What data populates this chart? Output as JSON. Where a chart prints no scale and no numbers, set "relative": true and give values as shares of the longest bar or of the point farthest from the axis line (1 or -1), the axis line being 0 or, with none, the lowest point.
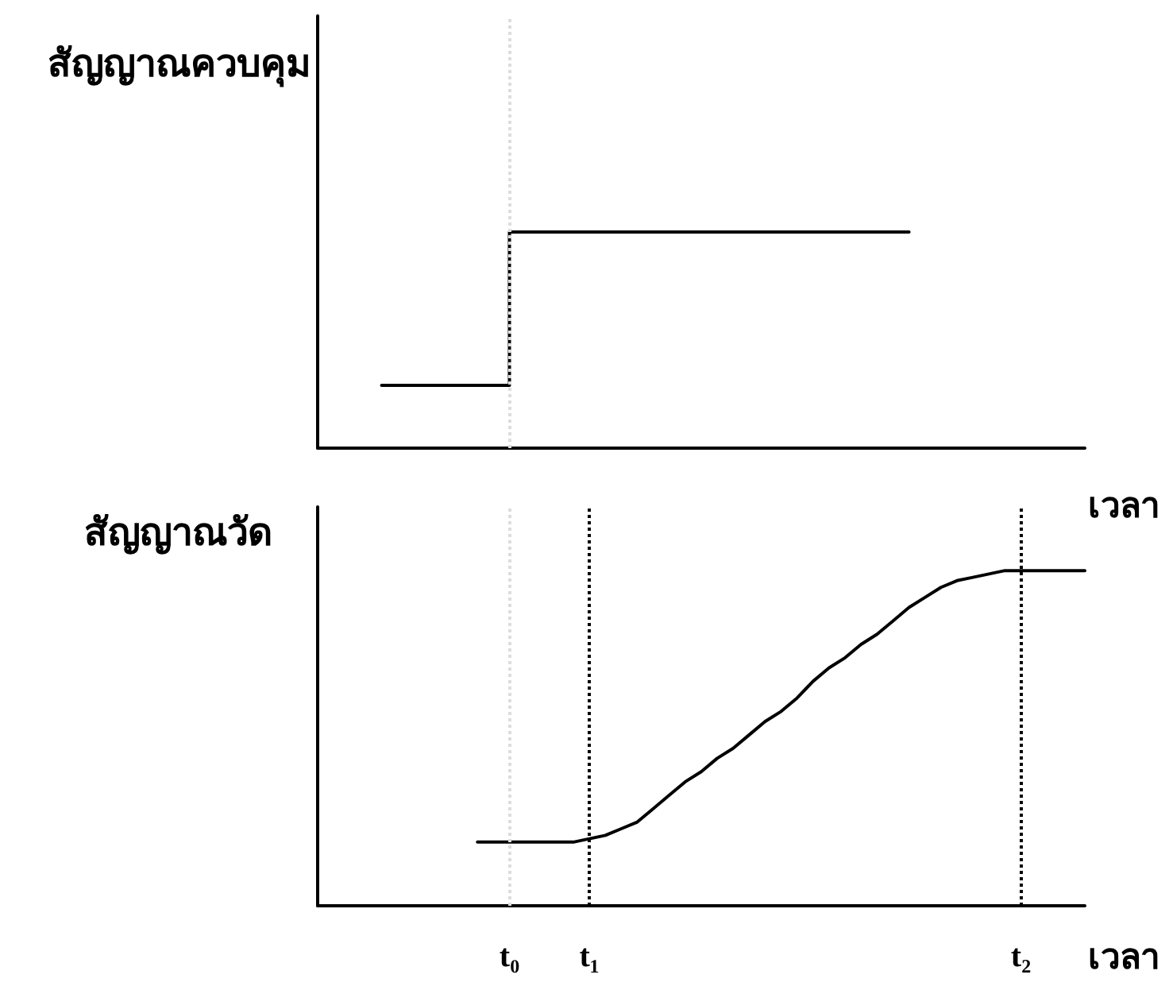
{
  "chart_data": [
    {
      "type": "step",
      "ylabel": "สัญญาณควบคุม",
      "xlabel": "เวลา",
      "relative": true,
      "tick_labels": false,
      "marker": "none",
      "line_style": "solid",
      "categories": [
        null,
        null,
        null,
        null,
        null,
        null,
        null,
        null,
        null,
        null,
        null,
        null,
        "t₀",
        null,
        null,
        null,
        null,
        "t₁",
        null,
        null,
        null,
        null,
        null,
        null,
        null,
        null,
        null,
        null,
        null,
        null,
        null,
        null,
        null,
        null,
        null,
        null,
        null,
        null,
        null,
        null,
        null,
        null,
        null,
        null,
        "t₂",
        null,
        null,
        null,
        null
      ],
      "series": [
        {
          "color": "#000000",
          "values": [
            null,
            null,
            null,
            null,
            0.29,
            0.29,
            0.29,
            0.29,
            0.29,
            0.29,
            0.29,
            0.29,
            0.29,
            1,
            1,
            1,
            1,
            1,
            1,
            1,
            1,
            1,
            1,
            1,
            1,
            1,
            1,
            1,
            1,
            1,
            1,
            1,
            1,
            1,
            1,
            1,
            1,
            1,
            null,
            null,
            null,
            null,
            null,
            null,
            null,
            null,
            null,
            null,
            null
          ]
        }
      ],
      "ref_lines": [
        {
          "axis": "x",
          "value": "t₀",
          "color": "#dddddd",
          "line_style": "dotted"
        }
      ]
    },
    {
      "type": "line",
      "ylabel": "สัญญาณวัด",
      "xlabel": "เวลา",
      "relative": true,
      "marker": "none",
      "line_style": "solid",
      "categories": [
        null,
        null,
        null,
        null,
        null,
        null,
        null,
        null,
        null,
        null,
        null,
        null,
        "t₀",
        null,
        null,
        null,
        null,
        "t₁",
        null,
        null,
        null,
        null,
        null,
        null,
        null,
        null,
        null,
        null,
        null,
        null,
        null,
        null,
        null,
        null,
        null,
        null,
        null,
        null,
        null,
        null,
        null,
        null,
        null,
        null,
        "t₂",
        null,
        null,
        null,
        null
      ],
      "series": [
        {
          "color": "#000000",
          "values": [
            null,
            null,
            null,
            null,
            null,
            null,
            null,
            null,
            null,
            null,
            0.19,
            0.19,
            0.19,
            0.19,
            0.19,
            0.19,
            0.19,
            0.2,
            0.21,
            0.23,
            0.25,
            0.29,
            0.33,
            0.37,
            0.4,
            0.44,
            0.47,
            0.51,
            0.55,
            0.58,
            0.62,
            0.67,
            0.71,
            0.74,
            0.78,
            0.81,
            0.85,
            0.89,
            0.92,
            0.95,
            0.97,
            0.98,
            0.99,
            1,
            1,
            1,
            1,
            1,
            1
          ]
        }
      ],
      "ref_lines": [
        {
          "axis": "x",
          "value": "t₀",
          "color": "#dddddd",
          "line_style": "dotted"
        },
        {
          "axis": "x",
          "value": "t₁",
          "color": "#000000",
          "line_style": "dotted"
        },
        {
          "axis": "x",
          "value": "t₂",
          "color": "#000000",
          "line_style": "dotted"
        }
      ]
    }
  ]
}
